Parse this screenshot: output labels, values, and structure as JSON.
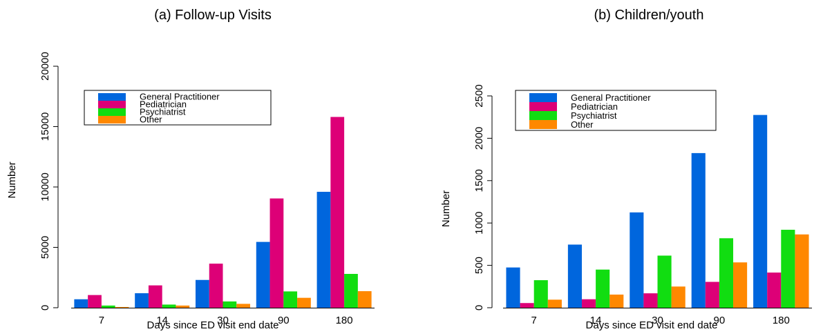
{
  "chart_data": [
    {
      "type": "bar",
      "title": "(a) Follow-up Visits",
      "xlabel": "Days since ED visit end date",
      "ylabel": "Number",
      "categories": [
        "7",
        "14",
        "30",
        "90",
        "180"
      ],
      "ylim": [
        0,
        20000
      ],
      "yticks": [
        "0",
        "5000",
        "10000",
        "15000",
        "20000"
      ],
      "legend_position": "top-left",
      "series": [
        {
          "name": "General Practitioner",
          "color": "#0066dd",
          "values": [
            700,
            1200,
            2300,
            5450,
            9600
          ]
        },
        {
          "name": "Pediatrician",
          "color": "#dd0077",
          "values": [
            1050,
            1850,
            3650,
            9050,
            15800
          ]
        },
        {
          "name": "Psychiatrist",
          "color": "#11dd11",
          "values": [
            180,
            260,
            520,
            1350,
            2800
          ]
        },
        {
          "name": "Other",
          "color": "#ff8800",
          "values": [
            60,
            180,
            320,
            820,
            1370
          ]
        }
      ]
    },
    {
      "type": "bar",
      "title": "(b) Children/youth",
      "xlabel": "Days since ED visit end date",
      "ylabel": "Number",
      "categories": [
        "7",
        "14",
        "30",
        "90",
        "180"
      ],
      "ylim": [
        0,
        2500
      ],
      "yticks": [
        "0",
        "500",
        "1000",
        "1500",
        "2000",
        "2500"
      ],
      "legend_position": "top-left",
      "series": [
        {
          "name": "General Practitioner",
          "color": "#0066dd",
          "values": [
            475,
            745,
            1125,
            1825,
            2275
          ]
        },
        {
          "name": "Pediatrician",
          "color": "#dd0077",
          "values": [
            55,
            100,
            170,
            305,
            415
          ]
        },
        {
          "name": "Psychiatrist",
          "color": "#11dd11",
          "values": [
            325,
            450,
            615,
            820,
            920
          ]
        },
        {
          "name": "Other",
          "color": "#ff8800",
          "values": [
            95,
            155,
            250,
            535,
            865
          ]
        }
      ]
    }
  ]
}
